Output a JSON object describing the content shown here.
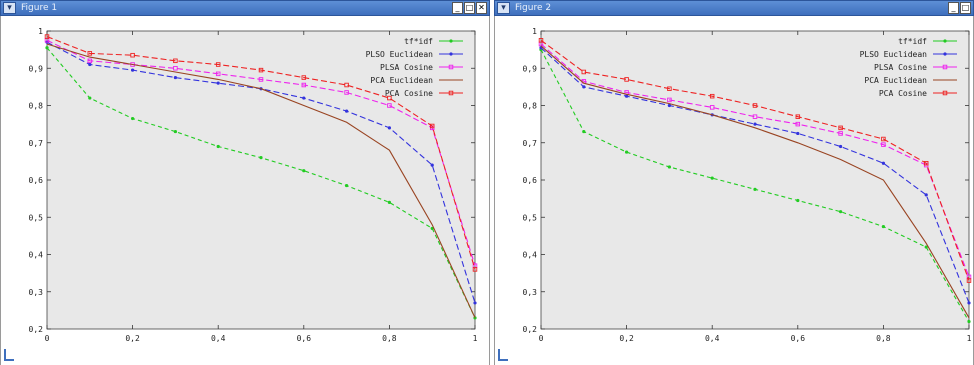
{
  "windows": [
    {
      "title": "Figure 1",
      "buttons": [
        "minimize",
        "maximize",
        "close"
      ]
    },
    {
      "title": "Figure 2",
      "buttons": [
        "minimize",
        "maximize"
      ]
    }
  ],
  "chart_data": [
    {
      "type": "line",
      "x": [
        0,
        0.1,
        0.2,
        0.3,
        0.4,
        0.5,
        0.6,
        0.7,
        0.8,
        0.9,
        1
      ],
      "xticks": [
        "0",
        "0,2",
        "0,4",
        "0,6",
        "0,8",
        "1"
      ],
      "yticks": [
        "0,2",
        "0,3",
        "0,4",
        "0,5",
        "0,6",
        "0,7",
        "0,8",
        "0,9",
        "1"
      ],
      "xlim": [
        0,
        1
      ],
      "ylim": [
        0.2,
        1
      ],
      "grid": false,
      "legend": "top-right",
      "series": [
        {
          "name": "tf*idf",
          "color": "#22cc22",
          "dash": "4,3",
          "marker": "circle",
          "values": [
            0.955,
            0.82,
            0.765,
            0.73,
            0.69,
            0.66,
            0.625,
            0.585,
            0.54,
            0.47,
            0.23
          ]
        },
        {
          "name": "PLSO Euclidean",
          "color": "#3333dd",
          "dash": "6,3",
          "marker": "circle",
          "values": [
            0.97,
            0.91,
            0.895,
            0.875,
            0.86,
            0.845,
            0.82,
            0.785,
            0.74,
            0.64,
            0.27
          ]
        },
        {
          "name": "PLSA Cosine",
          "color": "#ee22ee",
          "dash": "6,3",
          "marker": "square",
          "values": [
            0.975,
            0.92,
            0.91,
            0.9,
            0.885,
            0.87,
            0.855,
            0.835,
            0.8,
            0.74,
            0.37
          ]
        },
        {
          "name": "PCA Euclidean",
          "color": "#994422",
          "dash": "",
          "marker": "none",
          "values": [
            0.965,
            0.93,
            0.91,
            0.89,
            0.87,
            0.845,
            0.8,
            0.755,
            0.68,
            0.48,
            0.23
          ]
        },
        {
          "name": "PCA Cosine",
          "color": "#ee2222",
          "dash": "6,3",
          "marker": "square",
          "values": [
            0.985,
            0.94,
            0.935,
            0.92,
            0.91,
            0.895,
            0.875,
            0.855,
            0.82,
            0.745,
            0.36
          ]
        }
      ]
    },
    {
      "type": "line",
      "x": [
        0,
        0.1,
        0.2,
        0.3,
        0.4,
        0.5,
        0.6,
        0.7,
        0.8,
        0.9,
        1
      ],
      "xticks": [
        "0",
        "0,2",
        "0,4",
        "0,6",
        "0,8",
        "1"
      ],
      "yticks": [
        "0,2",
        "0,3",
        "0,4",
        "0,5",
        "0,6",
        "0,7",
        "0,8",
        "0,9",
        "1"
      ],
      "xlim": [
        0,
        1
      ],
      "ylim": [
        0.2,
        1
      ],
      "grid": false,
      "legend": "top-right",
      "series": [
        {
          "name": "tf*idf",
          "color": "#22cc22",
          "dash": "4,3",
          "marker": "circle",
          "values": [
            0.95,
            0.73,
            0.675,
            0.635,
            0.605,
            0.575,
            0.545,
            0.515,
            0.475,
            0.42,
            0.22
          ]
        },
        {
          "name": "PLSO Euclidean",
          "color": "#3333dd",
          "dash": "6,3",
          "marker": "circle",
          "values": [
            0.955,
            0.85,
            0.825,
            0.8,
            0.775,
            0.75,
            0.725,
            0.69,
            0.645,
            0.56,
            0.27
          ]
        },
        {
          "name": "PLSA Cosine",
          "color": "#ee22ee",
          "dash": "6,3",
          "marker": "square",
          "values": [
            0.965,
            0.865,
            0.835,
            0.815,
            0.795,
            0.77,
            0.75,
            0.725,
            0.695,
            0.64,
            0.34
          ]
        },
        {
          "name": "PCA Euclidean",
          "color": "#994422",
          "dash": "",
          "marker": "none",
          "values": [
            0.96,
            0.86,
            0.83,
            0.805,
            0.775,
            0.74,
            0.7,
            0.655,
            0.6,
            0.43,
            0.23
          ]
        },
        {
          "name": "PCA Cosine",
          "color": "#ee2222",
          "dash": "6,3",
          "marker": "square",
          "values": [
            0.975,
            0.89,
            0.87,
            0.845,
            0.825,
            0.8,
            0.77,
            0.74,
            0.71,
            0.645,
            0.33
          ]
        }
      ]
    }
  ]
}
